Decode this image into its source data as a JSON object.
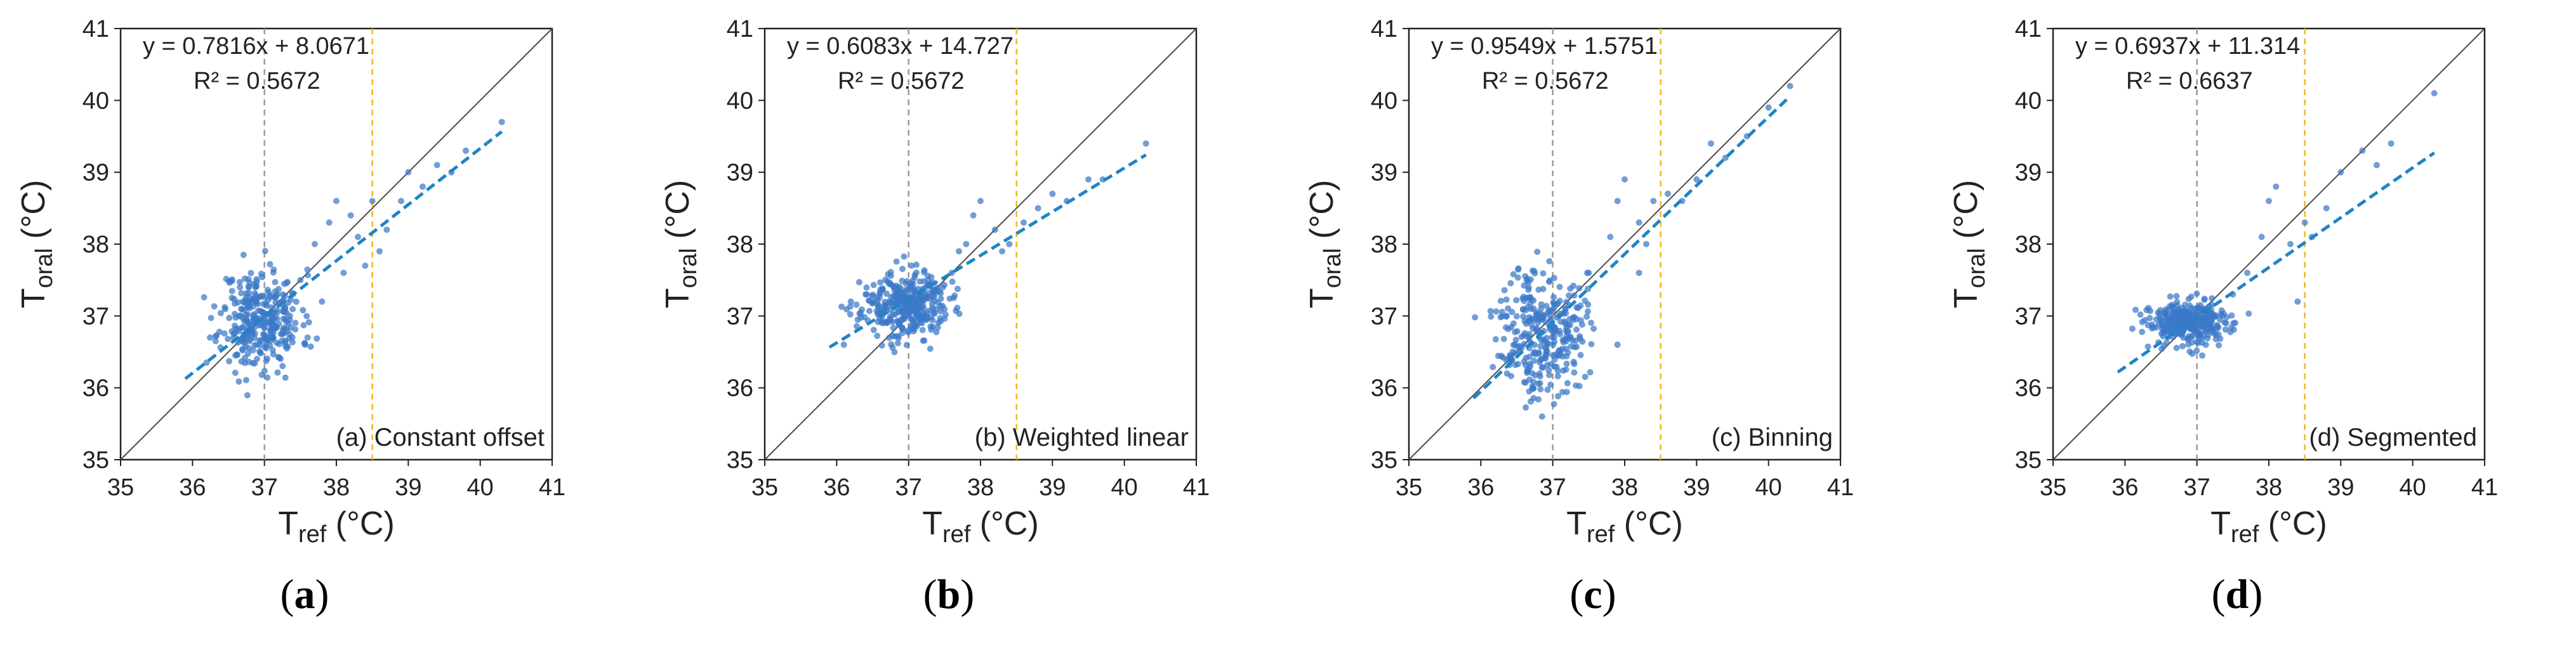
{
  "figure": {
    "colors": {
      "points": "#3b78c8",
      "fit": "#1f84c6",
      "identity": "#4a4a4a",
      "ref_line": "#9a9a9a",
      "threshold": "#f2b520",
      "axis": "#222222"
    }
  },
  "chart_data": [
    {
      "type": "scatter",
      "panel_label": "a",
      "annotation": "(a) Constant offset",
      "equation": "y = 0.7816x + 8.0671",
      "r2": "R² = 0.5672",
      "xlabel_main": "T",
      "xlabel_sub": "ref",
      "xlabel_unit": " (°C)",
      "ylabel_main": "T",
      "ylabel_sub": "oral",
      "ylabel_unit": " (°C)",
      "xlim": [
        35,
        41
      ],
      "ylim": [
        35,
        41
      ],
      "xticks": [
        "35",
        "36",
        "37",
        "38",
        "39",
        "40",
        "41"
      ],
      "yticks": [
        "35",
        "36",
        "37",
        "38",
        "39",
        "40",
        "41"
      ],
      "fit": {
        "slope": 0.7816,
        "intercept": 8.0671,
        "x_range": [
          35.9,
          40.3
        ]
      },
      "identity_line": true,
      "vlines": [
        {
          "x": 37.0,
          "style": "gray-dashed"
        },
        {
          "x": 38.5,
          "style": "yellow-dashed"
        }
      ],
      "cluster": {
        "cx": 36.95,
        "cy": 36.95,
        "sx": 0.28,
        "sy": 0.35,
        "n": 320,
        "seed": 11
      },
      "outliers": [
        [
          37.5,
          37.5
        ],
        [
          37.7,
          38.0
        ],
        [
          37.9,
          38.3
        ],
        [
          38.0,
          38.6
        ],
        [
          38.2,
          38.4
        ],
        [
          38.3,
          38.1
        ],
        [
          38.5,
          38.6
        ],
        [
          38.6,
          37.9
        ],
        [
          38.7,
          38.2
        ],
        [
          38.9,
          38.6
        ],
        [
          39.0,
          39.0
        ],
        [
          39.2,
          38.8
        ],
        [
          39.4,
          39.1
        ],
        [
          39.6,
          39.0
        ],
        [
          39.8,
          39.3
        ],
        [
          40.3,
          39.7
        ],
        [
          37.8,
          37.2
        ],
        [
          38.1,
          37.6
        ],
        [
          37.6,
          36.7
        ],
        [
          38.4,
          37.7
        ]
      ]
    },
    {
      "type": "scatter",
      "panel_label": "b",
      "annotation": "(b) Weighted linear",
      "equation": "y = 0.6083x + 14.727",
      "r2": "R² = 0.5672",
      "xlabel_main": "T",
      "xlabel_sub": "ref",
      "xlabel_unit": " (°C)",
      "ylabel_main": "T",
      "ylabel_sub": "oral",
      "ylabel_unit": " (°C)",
      "xlim": [
        35,
        41
      ],
      "ylim": [
        35,
        41
      ],
      "xticks": [
        "35",
        "36",
        "37",
        "38",
        "39",
        "40",
        "41"
      ],
      "yticks": [
        "35",
        "36",
        "37",
        "38",
        "39",
        "40",
        "41"
      ],
      "fit": {
        "slope": 0.6083,
        "intercept": 14.727,
        "x_range": [
          35.9,
          40.3
        ]
      },
      "identity_line": true,
      "vlines": [
        {
          "x": 37.0,
          "style": "gray-dashed"
        },
        {
          "x": 38.5,
          "style": "yellow-dashed"
        }
      ],
      "cluster": {
        "cx": 36.95,
        "cy": 37.15,
        "sx": 0.3,
        "sy": 0.22,
        "n": 360,
        "seed": 23
      },
      "outliers": [
        [
          37.6,
          37.6
        ],
        [
          37.8,
          38.0
        ],
        [
          37.9,
          38.4
        ],
        [
          38.0,
          38.6
        ],
        [
          38.2,
          38.2
        ],
        [
          38.4,
          38.0
        ],
        [
          38.6,
          38.3
        ],
        [
          38.8,
          38.5
        ],
        [
          39.0,
          38.7
        ],
        [
          39.2,
          38.6
        ],
        [
          39.5,
          38.9
        ],
        [
          39.7,
          38.9
        ],
        [
          40.3,
          39.4
        ],
        [
          36.1,
          36.6
        ],
        [
          37.7,
          37.9
        ],
        [
          38.3,
          37.9
        ]
      ]
    },
    {
      "type": "scatter",
      "panel_label": "c",
      "annotation": "(c) Binning",
      "equation": "y = 0.9549x + 1.5751",
      "r2": "R² = 0.5672",
      "xlabel_main": "T",
      "xlabel_sub": "ref",
      "xlabel_unit": " (°C)",
      "ylabel_main": "T",
      "ylabel_sub": "oral",
      "ylabel_unit": " (°C)",
      "xlim": [
        35,
        41
      ],
      "ylim": [
        35,
        41
      ],
      "xticks": [
        "35",
        "36",
        "37",
        "38",
        "39",
        "40",
        "41"
      ],
      "yticks": [
        "35",
        "36",
        "37",
        "38",
        "39",
        "40",
        "41"
      ],
      "fit": {
        "slope": 0.9549,
        "intercept": 1.5751,
        "x_range": [
          35.9,
          40.3
        ]
      },
      "identity_line": true,
      "vlines": [
        {
          "x": 37.0,
          "style": "gray-dashed"
        },
        {
          "x": 38.5,
          "style": "yellow-dashed"
        }
      ],
      "cluster": {
        "cx": 36.85,
        "cy": 36.8,
        "sx": 0.3,
        "sy": 0.45,
        "n": 320,
        "seed": 37
      },
      "outliers": [
        [
          37.5,
          37.6
        ],
        [
          37.8,
          38.1
        ],
        [
          37.9,
          38.6
        ],
        [
          38.0,
          38.9
        ],
        [
          38.2,
          38.3
        ],
        [
          38.4,
          38.6
        ],
        [
          38.6,
          38.7
        ],
        [
          38.8,
          38.6
        ],
        [
          39.0,
          38.9
        ],
        [
          39.2,
          39.4
        ],
        [
          39.4,
          39.2
        ],
        [
          39.7,
          39.5
        ],
        [
          40.0,
          39.9
        ],
        [
          40.3,
          40.2
        ],
        [
          37.9,
          36.6
        ],
        [
          38.2,
          37.6
        ],
        [
          38.3,
          38.0
        ]
      ]
    },
    {
      "type": "scatter",
      "panel_label": "d",
      "annotation": "(d) Segmented",
      "equation": "y = 0.6937x + 11.314",
      "r2": "R² = 0.6637",
      "xlabel_main": "T",
      "xlabel_sub": "ref",
      "xlabel_unit": " (°C)",
      "ylabel_main": "T",
      "ylabel_sub": "oral",
      "ylabel_unit": " (°C)",
      "xlim": [
        35,
        41
      ],
      "ylim": [
        35,
        41
      ],
      "xticks": [
        "35",
        "36",
        "37",
        "38",
        "39",
        "40",
        "41"
      ],
      "yticks": [
        "35",
        "36",
        "37",
        "38",
        "39",
        "40",
        "41"
      ],
      "fit": {
        "slope": 0.6937,
        "intercept": 11.314,
        "x_range": [
          35.9,
          40.3
        ]
      },
      "identity_line": true,
      "vlines": [
        {
          "x": 37.0,
          "style": "gray-dashed"
        },
        {
          "x": 38.5,
          "style": "yellow-dashed"
        }
      ],
      "cluster": {
        "cx": 36.9,
        "cy": 36.9,
        "sx": 0.3,
        "sy": 0.15,
        "n": 330,
        "seed": 53
      },
      "outliers": [
        [
          37.5,
          37.3
        ],
        [
          37.7,
          37.6
        ],
        [
          37.9,
          38.1
        ],
        [
          38.0,
          38.6
        ],
        [
          38.1,
          38.8
        ],
        [
          38.3,
          38.0
        ],
        [
          38.5,
          38.3
        ],
        [
          38.6,
          38.1
        ],
        [
          38.8,
          38.5
        ],
        [
          39.0,
          39.0
        ],
        [
          39.3,
          39.3
        ],
        [
          39.5,
          39.1
        ],
        [
          39.7,
          39.4
        ],
        [
          40.3,
          40.1
        ],
        [
          38.4,
          37.2
        ]
      ]
    }
  ]
}
